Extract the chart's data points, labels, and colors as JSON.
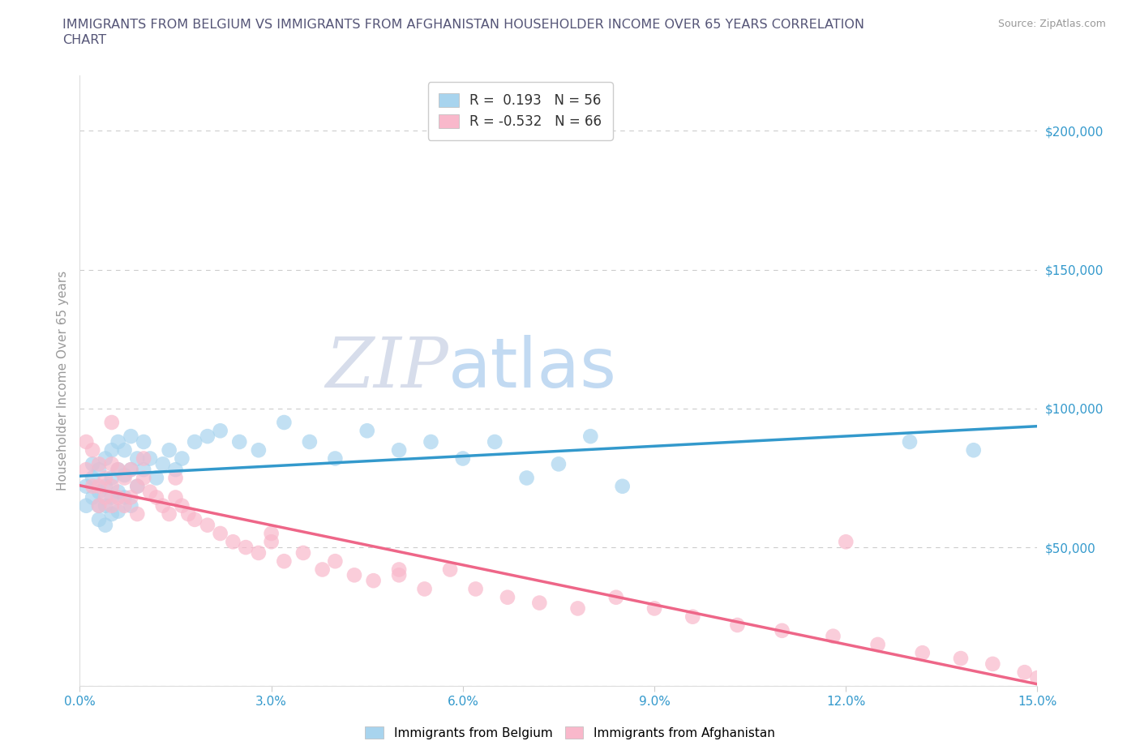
{
  "title_line1": "IMMIGRANTS FROM BELGIUM VS IMMIGRANTS FROM AFGHANISTAN HOUSEHOLDER INCOME OVER 65 YEARS CORRELATION",
  "title_line2": "CHART",
  "source": "Source: ZipAtlas.com",
  "ylabel": "Householder Income Over 65 years",
  "xlim": [
    0.0,
    0.15
  ],
  "ylim": [
    0,
    220000
  ],
  "xticks": [
    0.0,
    0.03,
    0.06,
    0.09,
    0.12,
    0.15
  ],
  "xtick_labels": [
    "0.0%",
    "3.0%",
    "6.0%",
    "9.0%",
    "12.0%",
    "15.0%"
  ],
  "yticks": [
    0,
    50000,
    100000,
    150000,
    200000
  ],
  "ytick_labels": [
    "",
    "$50,000",
    "$100,000",
    "$150,000",
    "$200,000"
  ],
  "belgium_color": "#a8d4ee",
  "afghanistan_color": "#f9b8cb",
  "belgium_line_color": "#3399cc",
  "afghanistan_line_color": "#ee6688",
  "R_belgium": 0.193,
  "N_belgium": 56,
  "R_afghanistan": -0.532,
  "N_afghanistan": 66,
  "legend_label_belgium": "Immigrants from Belgium",
  "legend_label_afghanistan": "Immigrants from Afghanistan",
  "background_color": "#ffffff",
  "grid_color": "#cccccc",
  "title_color": "#555577",
  "axis_label_color": "#999999",
  "tick_label_color_right": "#3399cc",
  "tick_label_color_bottom_left": "#3399cc",
  "belgium_scatter_x": [
    0.001,
    0.001,
    0.002,
    0.002,
    0.002,
    0.003,
    0.003,
    0.003,
    0.003,
    0.004,
    0.004,
    0.004,
    0.004,
    0.005,
    0.005,
    0.005,
    0.005,
    0.006,
    0.006,
    0.006,
    0.006,
    0.007,
    0.007,
    0.007,
    0.008,
    0.008,
    0.008,
    0.009,
    0.009,
    0.01,
    0.01,
    0.011,
    0.012,
    0.013,
    0.014,
    0.015,
    0.016,
    0.018,
    0.02,
    0.022,
    0.025,
    0.028,
    0.032,
    0.036,
    0.04,
    0.045,
    0.05,
    0.055,
    0.06,
    0.065,
    0.07,
    0.075,
    0.08,
    0.085,
    0.13,
    0.14
  ],
  "belgium_scatter_y": [
    72000,
    65000,
    75000,
    68000,
    80000,
    70000,
    65000,
    78000,
    60000,
    82000,
    72000,
    65000,
    58000,
    85000,
    75000,
    68000,
    62000,
    88000,
    78000,
    70000,
    63000,
    85000,
    76000,
    68000,
    90000,
    78000,
    65000,
    82000,
    72000,
    88000,
    78000,
    82000,
    75000,
    80000,
    85000,
    78000,
    82000,
    88000,
    90000,
    92000,
    88000,
    85000,
    95000,
    88000,
    82000,
    92000,
    85000,
    88000,
    82000,
    88000,
    75000,
    80000,
    90000,
    72000,
    88000,
    85000
  ],
  "afghanistan_scatter_x": [
    0.001,
    0.001,
    0.002,
    0.002,
    0.003,
    0.003,
    0.003,
    0.004,
    0.004,
    0.005,
    0.005,
    0.005,
    0.006,
    0.006,
    0.007,
    0.007,
    0.008,
    0.008,
    0.009,
    0.009,
    0.01,
    0.011,
    0.012,
    0.013,
    0.014,
    0.015,
    0.016,
    0.017,
    0.018,
    0.02,
    0.022,
    0.024,
    0.026,
    0.028,
    0.03,
    0.032,
    0.035,
    0.038,
    0.04,
    0.043,
    0.046,
    0.05,
    0.054,
    0.058,
    0.062,
    0.067,
    0.072,
    0.078,
    0.084,
    0.09,
    0.096,
    0.103,
    0.11,
    0.118,
    0.125,
    0.132,
    0.138,
    0.143,
    0.148,
    0.15,
    0.005,
    0.01,
    0.015,
    0.03,
    0.05,
    0.12
  ],
  "afghanistan_scatter_y": [
    88000,
    78000,
    85000,
    72000,
    80000,
    72000,
    65000,
    75000,
    68000,
    80000,
    72000,
    65000,
    78000,
    68000,
    75000,
    65000,
    78000,
    68000,
    72000,
    62000,
    75000,
    70000,
    68000,
    65000,
    62000,
    68000,
    65000,
    62000,
    60000,
    58000,
    55000,
    52000,
    50000,
    48000,
    52000,
    45000,
    48000,
    42000,
    45000,
    40000,
    38000,
    40000,
    35000,
    42000,
    35000,
    32000,
    30000,
    28000,
    32000,
    28000,
    25000,
    22000,
    20000,
    18000,
    15000,
    12000,
    10000,
    8000,
    5000,
    3000,
    95000,
    82000,
    75000,
    55000,
    42000,
    52000
  ]
}
